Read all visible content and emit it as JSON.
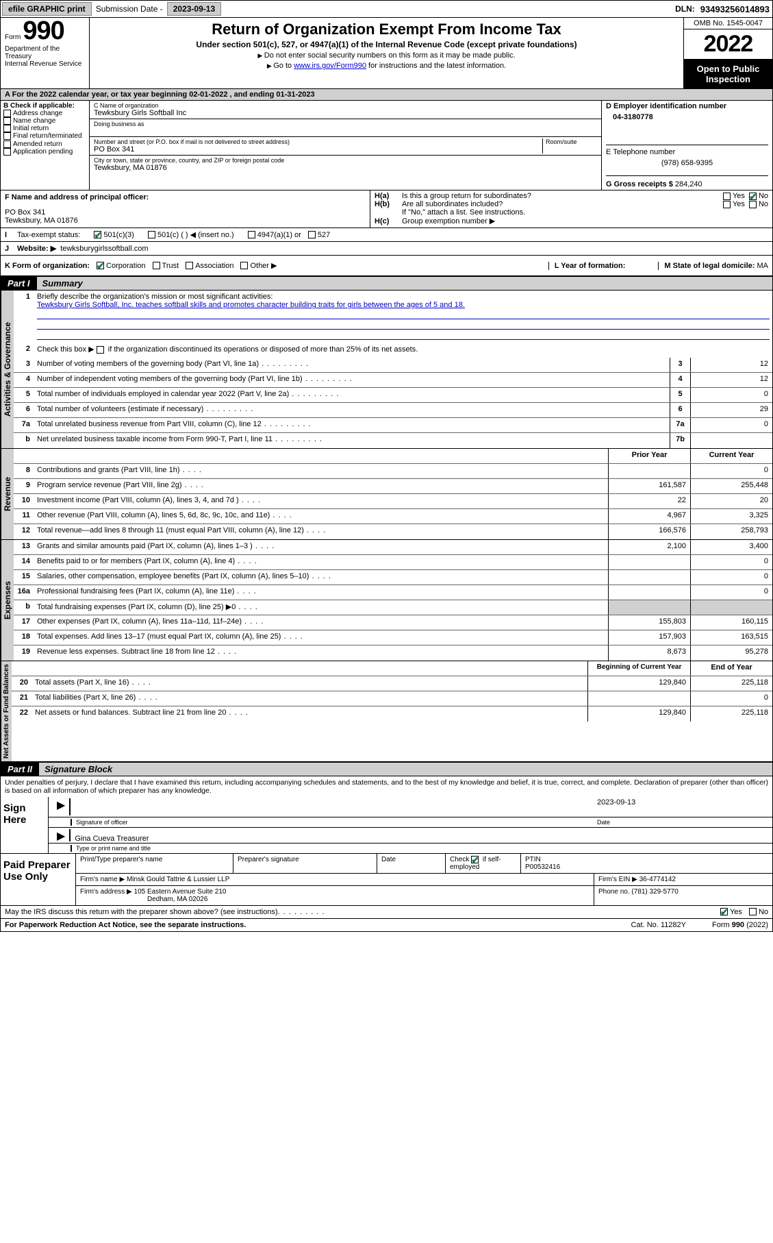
{
  "topbar": {
    "efile": "efile GRAPHIC print",
    "sub_label": "Submission Date - ",
    "sub_date": "2023-09-13",
    "dln_label": "DLN: ",
    "dln": "93493256014893"
  },
  "header": {
    "form_label": "Form",
    "form_num": "990",
    "title": "Return of Organization Exempt From Income Tax",
    "subtitle": "Under section 501(c), 527, or 4947(a)(1) of the Internal Revenue Code (except private foundations)",
    "note1": "Do not enter social security numbers on this form as it may be made public.",
    "note2_pre": "Go to ",
    "note2_link": "www.irs.gov/Form990",
    "note2_post": " for instructions and the latest information.",
    "dept": "Department of the Treasury\nInternal Revenue Service",
    "omb": "OMB No. 1545-0047",
    "year": "2022",
    "inspect": "Open to Public Inspection"
  },
  "taxyear": "For the 2022 calendar year, or tax year beginning 02-01-2022   , and ending 01-31-2023",
  "B": {
    "title": "B Check if applicable:",
    "items": [
      "Address change",
      "Name change",
      "Initial return",
      "Final return/terminated",
      "Amended return",
      "Application pending"
    ]
  },
  "C": {
    "name_label": "C Name of organization",
    "name": "Tewksbury Girls Softball Inc",
    "dba_label": "Doing business as",
    "addr_label": "Number and street (or P.O. box if mail is not delivered to street address)",
    "room_label": "Room/suite",
    "addr": "PO Box 341",
    "city_label": "City or town, state or province, country, and ZIP or foreign postal code",
    "city": "Tewksbury, MA  01876"
  },
  "D": {
    "label": "D Employer identification number",
    "val": "04-3180778"
  },
  "E": {
    "label": "E Telephone number",
    "val": "(978) 658-9395"
  },
  "G": {
    "label": "G Gross receipts $ ",
    "val": "284,240"
  },
  "F": {
    "label": "F  Name and address of principal officer:",
    "line1": "PO Box 341",
    "line2": "Tewksbury, MA  01876"
  },
  "H": {
    "a": "Is this a group return for subordinates?",
    "b": "Are all subordinates included?",
    "b_note": "If \"No,\" attach a list. See instructions.",
    "c": "Group exemption number ▶",
    "yes": "Yes",
    "no": "No"
  },
  "I": {
    "label": "Tax-exempt status:",
    "opts": [
      "501(c)(3)",
      "501(c) (  ) ◀ (insert no.)",
      "4947(a)(1) or",
      "527"
    ]
  },
  "J": {
    "label": "Website: ▶",
    "val": "tewksburygirlssoftball.com"
  },
  "K": {
    "label": "K Form of organization:",
    "opts": [
      "Corporation",
      "Trust",
      "Association",
      "Other ▶"
    ]
  },
  "L": {
    "label": "L Year of formation:",
    "val": ""
  },
  "M": {
    "label": "M State of legal domicile: ",
    "val": "MA"
  },
  "part1": {
    "tag": "Part I",
    "title": "Summary",
    "line1_label": "Briefly describe the organization's mission or most significant activities:",
    "line1_text": "Tewksbury Girls Softball, Inc. teaches softball skills and promotes character building traits for girls between the ages of 5 and 18.",
    "line2": "Check this box ▶      if the organization discontinued its operations or disposed of more than 25% of its net assets.",
    "sections": {
      "gov": "Activities & Governance",
      "rev": "Revenue",
      "exp": "Expenses",
      "bal": "Net Assets or Fund Balances"
    },
    "col_prior": "Prior Year",
    "col_curr": "Current Year",
    "col_beg": "Beginning of Current Year",
    "col_end": "End of Year",
    "rows_gov": [
      {
        "n": "3",
        "t": "Number of voting members of the governing body (Part VI, line 1a)",
        "box": "3",
        "v": "12"
      },
      {
        "n": "4",
        "t": "Number of independent voting members of the governing body (Part VI, line 1b)",
        "box": "4",
        "v": "12"
      },
      {
        "n": "5",
        "t": "Total number of individuals employed in calendar year 2022 (Part V, line 2a)",
        "box": "5",
        "v": "0"
      },
      {
        "n": "6",
        "t": "Total number of volunteers (estimate if necessary)",
        "box": "6",
        "v": "29"
      },
      {
        "n": "7a",
        "t": "Total unrelated business revenue from Part VIII, column (C), line 12",
        "box": "7a",
        "v": "0"
      },
      {
        "n": "b",
        "t": "Net unrelated business taxable income from Form 990-T, Part I, line 11",
        "box": "7b",
        "v": ""
      }
    ],
    "rows_rev": [
      {
        "n": "8",
        "t": "Contributions and grants (Part VIII, line 1h)",
        "p": "",
        "c": "0"
      },
      {
        "n": "9",
        "t": "Program service revenue (Part VIII, line 2g)",
        "p": "161,587",
        "c": "255,448"
      },
      {
        "n": "10",
        "t": "Investment income (Part VIII, column (A), lines 3, 4, and 7d )",
        "p": "22",
        "c": "20"
      },
      {
        "n": "11",
        "t": "Other revenue (Part VIII, column (A), lines 5, 6d, 8c, 9c, 10c, and 11e)",
        "p": "4,967",
        "c": "3,325"
      },
      {
        "n": "12",
        "t": "Total revenue—add lines 8 through 11 (must equal Part VIII, column (A), line 12)",
        "p": "166,576",
        "c": "258,793"
      }
    ],
    "rows_exp": [
      {
        "n": "13",
        "t": "Grants and similar amounts paid (Part IX, column (A), lines 1–3 )",
        "p": "2,100",
        "c": "3,400"
      },
      {
        "n": "14",
        "t": "Benefits paid to or for members (Part IX, column (A), line 4)",
        "p": "",
        "c": "0"
      },
      {
        "n": "15",
        "t": "Salaries, other compensation, employee benefits (Part IX, column (A), lines 5–10)",
        "p": "",
        "c": "0"
      },
      {
        "n": "16a",
        "t": "Professional fundraising fees (Part IX, column (A), line 11e)",
        "p": "",
        "c": "0"
      },
      {
        "n": "b",
        "t": "Total fundraising expenses (Part IX, column (D), line 25) ▶0",
        "p": "shade",
        "c": "shade"
      },
      {
        "n": "17",
        "t": "Other expenses (Part IX, column (A), lines 11a–11d, 11f–24e)",
        "p": "155,803",
        "c": "160,115"
      },
      {
        "n": "18",
        "t": "Total expenses. Add lines 13–17 (must equal Part IX, column (A), line 25)",
        "p": "157,903",
        "c": "163,515"
      },
      {
        "n": "19",
        "t": "Revenue less expenses. Subtract line 18 from line 12",
        "p": "8,673",
        "c": "95,278"
      }
    ],
    "rows_bal": [
      {
        "n": "20",
        "t": "Total assets (Part X, line 16)",
        "p": "129,840",
        "c": "225,118"
      },
      {
        "n": "21",
        "t": "Total liabilities (Part X, line 26)",
        "p": "",
        "c": "0"
      },
      {
        "n": "22",
        "t": "Net assets or fund balances. Subtract line 21 from line 20",
        "p": "129,840",
        "c": "225,118"
      }
    ]
  },
  "part2": {
    "tag": "Part II",
    "title": "Signature Block",
    "declare": "Under penalties of perjury, I declare that I have examined this return, including accompanying schedules and statements, and to the best of my knowledge and belief, it is true, correct, and complete. Declaration of preparer (other than officer) is based on all information of which preparer has any knowledge."
  },
  "sign": {
    "label": "Sign Here",
    "sig_label": "Signature of officer",
    "date_label": "Date",
    "date": "2023-09-13",
    "name": "Gina Cueva  Treasurer",
    "name_label": "Type or print name and title"
  },
  "paid": {
    "label": "Paid Preparer Use Only",
    "h1": "Print/Type preparer's name",
    "h2": "Preparer's signature",
    "h3": "Date",
    "h4_pre": "Check",
    "h4_post": "if self-employed",
    "h5": "PTIN",
    "ptin": "P00532416",
    "firm_label": "Firm's name    ▶",
    "firm": "Minsk Gould Tattrie & Lussier LLP",
    "ein_label": "Firm's EIN ▶",
    "ein": "36-4774142",
    "addr_label": "Firm's address ▶",
    "addr1": "105 Eastern Avenue Suite 210",
    "addr2": "Dedham, MA  02026",
    "phone_label": "Phone no. ",
    "phone": "(781) 329-5770"
  },
  "footer": {
    "q": "May the IRS discuss this return with the preparer shown above? (see instructions)",
    "yes": "Yes",
    "no": "No",
    "pra": "For Paperwork Reduction Act Notice, see the separate instructions.",
    "cat": "Cat. No. 11282Y",
    "form": "Form 990 (2022)"
  }
}
